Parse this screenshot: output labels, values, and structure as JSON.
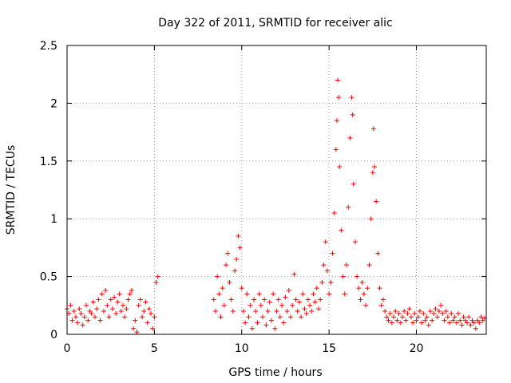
{
  "chart_data": {
    "type": "scatter",
    "title": "Day 322 of 2011, SRMTID for receiver alic",
    "xlabel": "GPS time / hours",
    "ylabel": "SRMTID / TECUs",
    "xlim": [
      0,
      24
    ],
    "ylim": [
      0,
      2.5
    ],
    "x_ticks": [
      0,
      5,
      10,
      15,
      20
    ],
    "x_tick_labels": [
      "0",
      "5",
      "10",
      "15",
      "20"
    ],
    "y_ticks": [
      0,
      0.5,
      1,
      1.5,
      2,
      2.5
    ],
    "y_tick_labels": [
      "0",
      "0.5",
      "1",
      "1.5",
      "2",
      "2.5"
    ],
    "grid": true,
    "marker": "+",
    "color": "#ff0000",
    "series": [
      {
        "name": "SRMTID",
        "points": [
          [
            0.0,
            0.22
          ],
          [
            0.1,
            0.18
          ],
          [
            0.2,
            0.25
          ],
          [
            0.3,
            0.12
          ],
          [
            0.4,
            0.2
          ],
          [
            0.5,
            0.15
          ],
          [
            0.6,
            0.1
          ],
          [
            0.7,
            0.22
          ],
          [
            0.8,
            0.18
          ],
          [
            0.9,
            0.08
          ],
          [
            1.0,
            0.15
          ],
          [
            1.1,
            0.25
          ],
          [
            1.2,
            0.12
          ],
          [
            1.3,
            0.2
          ],
          [
            1.4,
            0.18
          ],
          [
            1.5,
            0.28
          ],
          [
            1.6,
            0.15
          ],
          [
            1.7,
            0.22
          ],
          [
            1.8,
            0.3
          ],
          [
            1.9,
            0.12
          ],
          [
            2.0,
            0.35
          ],
          [
            2.1,
            0.2
          ],
          [
            2.2,
            0.38
          ],
          [
            2.3,
            0.25
          ],
          [
            2.4,
            0.15
          ],
          [
            2.5,
            0.3
          ],
          [
            2.6,
            0.22
          ],
          [
            2.7,
            0.32
          ],
          [
            2.8,
            0.18
          ],
          [
            2.9,
            0.28
          ],
          [
            3.0,
            0.35
          ],
          [
            3.1,
            0.2
          ],
          [
            3.2,
            0.25
          ],
          [
            3.3,
            0.15
          ],
          [
            3.4,
            0.22
          ],
          [
            3.5,
            0.3
          ],
          [
            3.6,
            0.35
          ],
          [
            3.7,
            0.38
          ],
          [
            3.8,
            0.05
          ],
          [
            3.9,
            0.12
          ],
          [
            4.0,
            0.02
          ],
          [
            4.1,
            0.25
          ],
          [
            4.2,
            0.3
          ],
          [
            4.3,
            0.15
          ],
          [
            4.4,
            0.2
          ],
          [
            4.5,
            0.28
          ],
          [
            4.6,
            0.1
          ],
          [
            4.7,
            0.22
          ],
          [
            4.8,
            0.18
          ],
          [
            4.9,
            0.05
          ],
          [
            5.0,
            0.15
          ],
          [
            5.1,
            0.45
          ],
          [
            5.2,
            0.5
          ],
          [
            8.4,
            0.3
          ],
          [
            8.5,
            0.2
          ],
          [
            8.6,
            0.5
          ],
          [
            8.7,
            0.35
          ],
          [
            8.8,
            0.15
          ],
          [
            8.9,
            0.4
          ],
          [
            9.0,
            0.25
          ],
          [
            9.1,
            0.6
          ],
          [
            9.2,
            0.7
          ],
          [
            9.3,
            0.45
          ],
          [
            9.4,
            0.3
          ],
          [
            9.5,
            0.2
          ],
          [
            9.6,
            0.55
          ],
          [
            9.7,
            0.65
          ],
          [
            9.8,
            0.85
          ],
          [
            9.9,
            0.75
          ],
          [
            10.0,
            0.4
          ],
          [
            10.1,
            0.2
          ],
          [
            10.2,
            0.1
          ],
          [
            10.3,
            0.35
          ],
          [
            10.4,
            0.15
          ],
          [
            10.5,
            0.25
          ],
          [
            10.6,
            0.05
          ],
          [
            10.7,
            0.3
          ],
          [
            10.8,
            0.2
          ],
          [
            10.9,
            0.1
          ],
          [
            11.0,
            0.35
          ],
          [
            11.1,
            0.25
          ],
          [
            11.2,
            0.15
          ],
          [
            11.3,
            0.3
          ],
          [
            11.4,
            0.08
          ],
          [
            11.5,
            0.2
          ],
          [
            11.6,
            0.28
          ],
          [
            11.7,
            0.12
          ],
          [
            11.8,
            0.35
          ],
          [
            11.9,
            0.05
          ],
          [
            12.0,
            0.2
          ],
          [
            12.1,
            0.3
          ],
          [
            12.2,
            0.15
          ],
          [
            12.3,
            0.25
          ],
          [
            12.4,
            0.1
          ],
          [
            12.5,
            0.32
          ],
          [
            12.6,
            0.2
          ],
          [
            12.7,
            0.38
          ],
          [
            12.8,
            0.15
          ],
          [
            12.9,
            0.25
          ],
          [
            13.0,
            0.52
          ],
          [
            13.1,
            0.3
          ],
          [
            13.2,
            0.2
          ],
          [
            13.3,
            0.28
          ],
          [
            13.4,
            0.15
          ],
          [
            13.5,
            0.35
          ],
          [
            13.6,
            0.22
          ],
          [
            13.7,
            0.18
          ],
          [
            13.8,
            0.3
          ],
          [
            13.9,
            0.25
          ],
          [
            14.0,
            0.2
          ],
          [
            14.1,
            0.35
          ],
          [
            14.2,
            0.28
          ],
          [
            14.3,
            0.4
          ],
          [
            14.4,
            0.22
          ],
          [
            14.5,
            0.3
          ],
          [
            14.6,
            0.45
          ],
          [
            14.7,
            0.6
          ],
          [
            14.8,
            0.8
          ],
          [
            14.9,
            0.55
          ],
          [
            15.0,
            0.35
          ],
          [
            15.1,
            0.45
          ],
          [
            15.2,
            0.7
          ],
          [
            15.3,
            1.05
          ],
          [
            15.4,
            1.6
          ],
          [
            15.45,
            1.85
          ],
          [
            15.5,
            2.2
          ],
          [
            15.55,
            2.05
          ],
          [
            15.6,
            1.45
          ],
          [
            15.7,
            0.9
          ],
          [
            15.8,
            0.5
          ],
          [
            15.9,
            0.35
          ],
          [
            16.0,
            0.6
          ],
          [
            16.1,
            1.1
          ],
          [
            16.2,
            1.7
          ],
          [
            16.3,
            2.05
          ],
          [
            16.35,
            1.9
          ],
          [
            16.4,
            1.3
          ],
          [
            16.5,
            0.8
          ],
          [
            16.6,
            0.5
          ],
          [
            16.7,
            0.4
          ],
          [
            16.8,
            0.3
          ],
          [
            16.9,
            0.45
          ],
          [
            17.0,
            0.35
          ],
          [
            17.1,
            0.25
          ],
          [
            17.2,
            0.4
          ],
          [
            17.3,
            0.6
          ],
          [
            17.4,
            1.0
          ],
          [
            17.5,
            1.4
          ],
          [
            17.55,
            1.78
          ],
          [
            17.6,
            1.45
          ],
          [
            17.7,
            1.15
          ],
          [
            17.8,
            0.7
          ],
          [
            17.9,
            0.4
          ],
          [
            18.0,
            0.25
          ],
          [
            18.1,
            0.3
          ],
          [
            18.2,
            0.2
          ],
          [
            18.3,
            0.15
          ],
          [
            18.4,
            0.12
          ],
          [
            18.5,
            0.18
          ],
          [
            18.6,
            0.1
          ],
          [
            18.7,
            0.15
          ],
          [
            18.8,
            0.2
          ],
          [
            18.9,
            0.12
          ],
          [
            19.0,
            0.18
          ],
          [
            19.1,
            0.1
          ],
          [
            19.2,
            0.15
          ],
          [
            19.3,
            0.2
          ],
          [
            19.4,
            0.12
          ],
          [
            19.5,
            0.18
          ],
          [
            19.6,
            0.22
          ],
          [
            19.7,
            0.15
          ],
          [
            19.8,
            0.1
          ],
          [
            19.9,
            0.18
          ],
          [
            20.0,
            0.12
          ],
          [
            20.1,
            0.15
          ],
          [
            20.2,
            0.2
          ],
          [
            20.3,
            0.1
          ],
          [
            20.4,
            0.18
          ],
          [
            20.5,
            0.12
          ],
          [
            20.6,
            0.15
          ],
          [
            20.7,
            0.08
          ],
          [
            20.8,
            0.2
          ],
          [
            20.9,
            0.12
          ],
          [
            21.0,
            0.18
          ],
          [
            21.1,
            0.22
          ],
          [
            21.2,
            0.15
          ],
          [
            21.3,
            0.2
          ],
          [
            21.4,
            0.25
          ],
          [
            21.5,
            0.18
          ],
          [
            21.6,
            0.12
          ],
          [
            21.7,
            0.2
          ],
          [
            21.8,
            0.15
          ],
          [
            21.9,
            0.1
          ],
          [
            22.0,
            0.18
          ],
          [
            22.1,
            0.12
          ],
          [
            22.2,
            0.15
          ],
          [
            22.3,
            0.1
          ],
          [
            22.4,
            0.18
          ],
          [
            22.5,
            0.12
          ],
          [
            22.6,
            0.08
          ],
          [
            22.7,
            0.15
          ],
          [
            22.8,
            0.12
          ],
          [
            22.9,
            0.1
          ],
          [
            23.0,
            0.15
          ],
          [
            23.1,
            0.08
          ],
          [
            23.2,
            0.12
          ],
          [
            23.3,
            0.1
          ],
          [
            23.4,
            0.05
          ],
          [
            23.5,
            0.12
          ],
          [
            23.6,
            0.1
          ],
          [
            23.7,
            0.15
          ],
          [
            23.8,
            0.12
          ],
          [
            23.9,
            0.14
          ]
        ]
      }
    ]
  }
}
